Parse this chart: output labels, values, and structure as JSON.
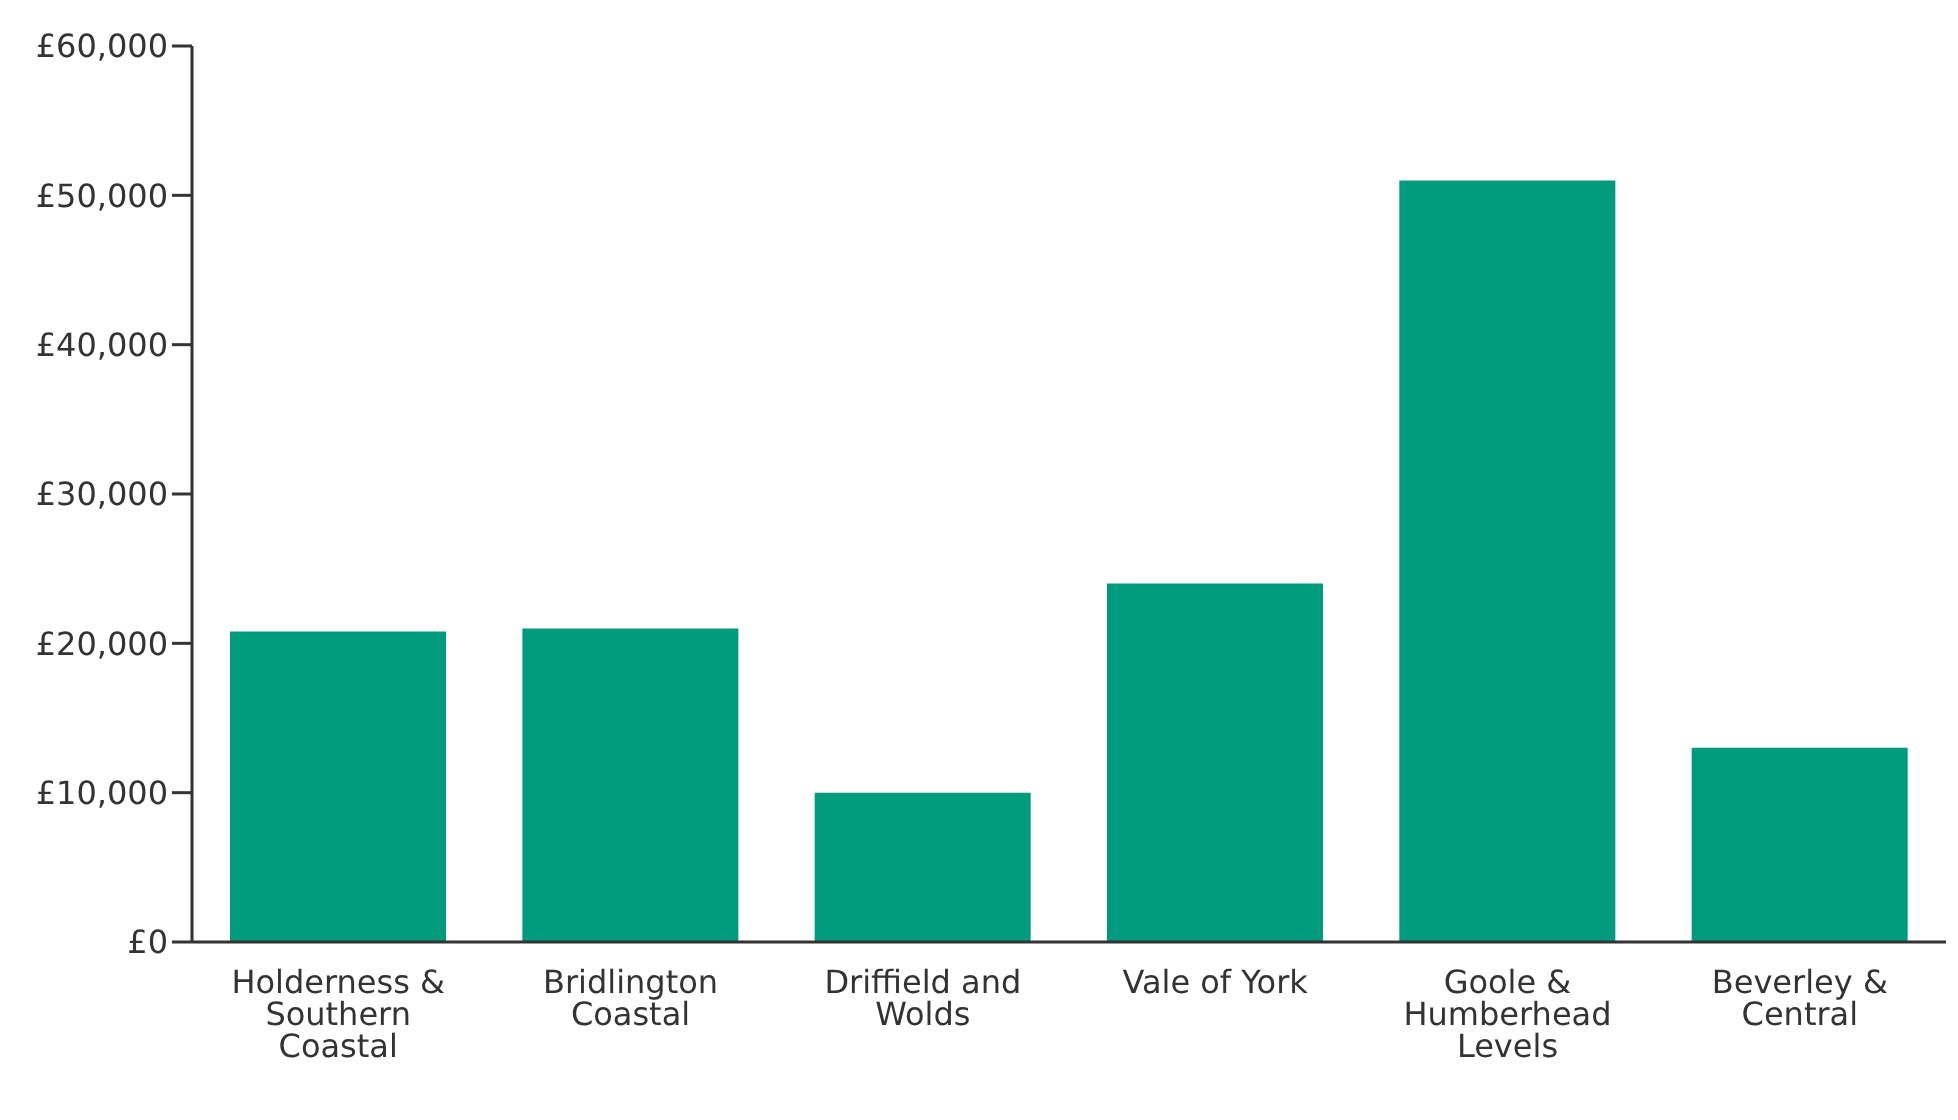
{
  "chart_data": {
    "type": "bar",
    "categories": [
      "Holderness & Southern Coastal",
      "Bridlington Coastal",
      "Driffield and Wolds",
      "Vale of York",
      "Goole & Humberhead Levels",
      "Beverley & Central"
    ],
    "values": [
      20800,
      21000,
      10000,
      24000,
      51000,
      13000
    ],
    "color": "#009b7d",
    "ylim": [
      0,
      60000
    ],
    "yticks": [
      {
        "value": 0,
        "label": "£0"
      },
      {
        "value": 10000,
        "label": "£10,000"
      },
      {
        "value": 20000,
        "label": "£20,000"
      },
      {
        "value": 30000,
        "label": "£30,000"
      },
      {
        "value": 40000,
        "label": "£40,000"
      },
      {
        "value": 50000,
        "label": "£50,000"
      },
      {
        "value": 60000,
        "label": "£60,000"
      }
    ],
    "grid": false,
    "legend": false
  }
}
